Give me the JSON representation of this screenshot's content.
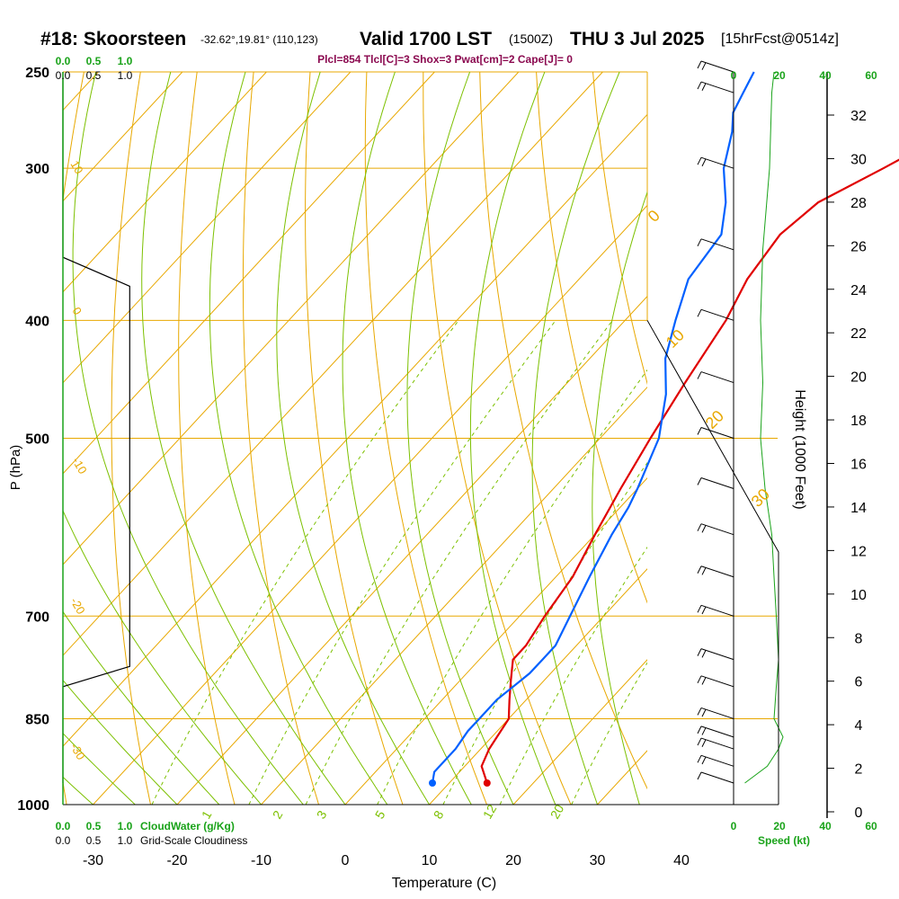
{
  "header": {
    "station": "#18: Skoorsteen",
    "coords": "-32.62°,19.81° (110,123)",
    "valid": "Valid 1700 LST",
    "zulu": "(1500Z)",
    "date": "THU 3 Jul 2025",
    "fcst": "[15hrFcst@0514z]",
    "params": "Plcl=854 Tlcl[C]=3 Shox=3 Pwat[cm]=2 Cape[J]= 0"
  },
  "chart_data": {
    "type": "line",
    "title": "#18: Skoorsteen",
    "xlabel": "Temperature (C)",
    "ylabel": "P (hPa)",
    "y2label": "Height (1000 Feet)",
    "x_ticks": [
      "-30",
      "-20",
      "-10",
      "0",
      "10",
      "20",
      "30",
      "40"
    ],
    "p_ticks": [
      "250",
      "300",
      "400",
      "500",
      "700",
      "850",
      "1000"
    ],
    "height_ticks": [
      "0",
      "2",
      "4",
      "6",
      "8",
      "10",
      "12",
      "14",
      "16",
      "18",
      "20",
      "22",
      "24",
      "26",
      "28",
      "30",
      "32"
    ],
    "cloud_ticks": [
      "0.0",
      "0.5",
      "1.0"
    ],
    "cloudwater_ticks": [
      "0.0",
      "0.5",
      "1.0"
    ],
    "speed_ticks": [
      "0",
      "20",
      "40",
      "60"
    ],
    "cloudwater_label": "CloudWater (g/Kg)",
    "cloudiness_label": "Grid-Scale Cloudiness",
    "speed_label": "Speed (kt)",
    "dry_adiabat_labels": [
      "10",
      "0",
      "-10",
      "-20",
      "-30"
    ],
    "isotherm_labels": [
      "0",
      "10",
      "20",
      "30"
    ],
    "mixing_ratio_labels": [
      "1",
      "2",
      "3",
      "5",
      "8",
      "12",
      "20"
    ],
    "colors": {
      "temperature": "#e00000",
      "dewpoint": "#0060ff",
      "isotherm": "#e8a800",
      "adiabat": "#7cc000",
      "grid": "#e8a800",
      "green": "#1aa31a",
      "label": "#8b0a50"
    },
    "series": [
      {
        "name": "Temperature",
        "pressure": [
          960,
          930,
          900,
          850,
          820,
          790,
          760,
          740,
          700,
          650,
          600,
          550,
          500,
          450,
          400,
          370,
          340,
          320,
          300,
          280,
          260,
          250
        ],
        "temp": [
          14.5,
          12,
          11,
          10,
          8,
          6,
          4,
          4,
          3,
          2,
          0,
          -2,
          -4,
          -6,
          -8,
          -10,
          -11,
          -10,
          -6,
          -2,
          1,
          2
        ]
      },
      {
        "name": "Dewpoint",
        "pressure": [
          960,
          940,
          900,
          870,
          850,
          820,
          800,
          780,
          760,
          740,
          700,
          650,
          600,
          570,
          550,
          500,
          460,
          430,
          400,
          370,
          340,
          320,
          300,
          280,
          270,
          260,
          250
        ],
        "temp": [
          8,
          7,
          7,
          6.5,
          6.5,
          6.5,
          7,
          7.5,
          7.5,
          7.5,
          6,
          4,
          2,
          1,
          0,
          -3,
          -7,
          -11,
          -14,
          -17,
          -18,
          -21,
          -25,
          -28,
          -30,
          -31,
          -32
        ]
      }
    ],
    "height_profile": {
      "pressure": [
        960,
        850,
        700,
        600,
        500,
        400,
        300,
        250
      ],
      "height_kft": [
        1.5,
        4.8,
        10,
        14,
        18.4,
        23.6,
        30.2,
        33.8
      ]
    },
    "cloud_fraction": {
      "pressure": [
        250,
        355,
        375,
        770,
        800,
        960
      ],
      "value": [
        0,
        0,
        0.55,
        0.55,
        0,
        0
      ]
    },
    "wind_speed_kt": {
      "pressure": [
        960,
        930,
        900,
        880,
        850,
        800,
        760,
        700,
        650,
        600,
        550,
        500,
        450,
        400,
        350,
        300,
        260,
        250
      ],
      "speed": [
        5,
        15,
        20,
        22,
        18,
        19,
        20,
        19,
        18,
        17,
        14,
        12,
        13,
        12,
        13,
        16,
        17,
        18
      ]
    }
  }
}
